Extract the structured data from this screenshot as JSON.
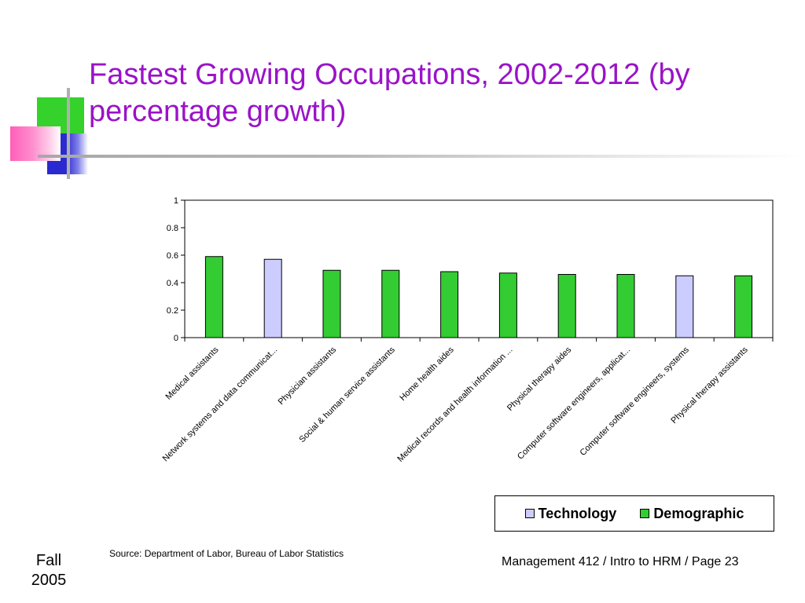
{
  "slide": {
    "title": "Fastest Growing Occupations, 2002-2012 (by percentage growth)",
    "source": "Source: Department of Labor, Bureau of Labor Statistics",
    "footer_left": [
      "Fall",
      "2005"
    ],
    "footer_right": "Management 412 / Intro to HRM / Page 23"
  },
  "colors": {
    "title": "#9a13c8",
    "technology": "#ccccff",
    "demographic": "#33cc33"
  },
  "chart_data": {
    "type": "bar",
    "title": "",
    "xlabel": "",
    "ylabel": "",
    "ylim": [
      0,
      1
    ],
    "yticks": [
      "0",
      "0.2",
      "0.4",
      "0.6",
      "0.8",
      "1"
    ],
    "grid": false,
    "legend_position": "bottom-right",
    "categories": [
      "Medical assistants",
      "Network systems and data communicat...",
      "Physician assistants",
      "Social & human service assistants",
      "Home health aides",
      "Medical records and health information ...",
      "Physical therapy aides",
      "Computer software engineers, applicat...",
      "Computer software engineers, systems",
      "Physical therapy assistants"
    ],
    "series": [
      {
        "name": "Technology",
        "values": [
          null,
          0.57,
          null,
          null,
          null,
          null,
          null,
          null,
          0.45,
          null
        ]
      },
      {
        "name": "Demographic",
        "values": [
          0.59,
          null,
          0.49,
          0.49,
          0.48,
          0.47,
          0.46,
          0.46,
          null,
          0.45
        ]
      }
    ]
  }
}
